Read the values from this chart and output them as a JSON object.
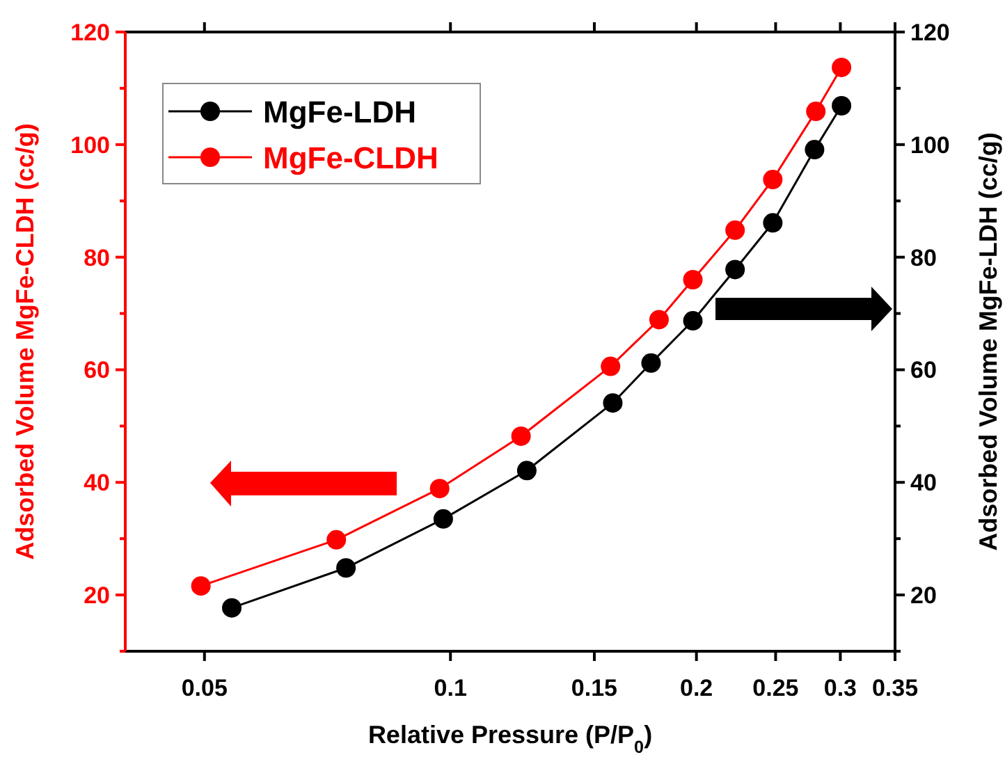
{
  "chart_data": {
    "type": "line",
    "xlabel": "Relative Pressure (P/P$_{0}$)",
    "ylabel": "Adsorbed Volume MgFe-CLDH (cc/g)",
    "y2label": "Adsorbed Volume MgFe-LDH (cc/g)",
    "log": "x",
    "xlim": [
      0.04,
      0.35
    ],
    "xticks": [
      0.05,
      0.1,
      0.15,
      0.2,
      0.25,
      0.3,
      0.35
    ],
    "ylim": [
      10,
      120
    ],
    "yticks": [
      {
        "value": 10,
        "label": null
      },
      20,
      {
        "value": 30,
        "label": null
      },
      40,
      {
        "value": 50,
        "label": null
      },
      60,
      {
        "value": 70,
        "label": null
      },
      80,
      {
        "value": 90,
        "label": null
      },
      100,
      {
        "value": 110,
        "label": null
      },
      120
    ],
    "y2lim": [
      10,
      120
    ],
    "y2ticks": [
      {
        "value": 10,
        "label": null
      },
      20,
      {
        "value": 30,
        "label": null
      },
      40,
      {
        "value": 50,
        "label": null
      },
      60,
      {
        "value": 70,
        "label": null
      },
      80,
      {
        "value": 90,
        "label": null
      },
      100,
      {
        "value": 110,
        "label": null
      },
      120
    ],
    "marker": "circle",
    "line_style": "solid",
    "legend": "top left",
    "grid": false,
    "series": [
      {
        "name": "MgFe-LDH",
        "color": "#000000",
        "axis": "y2",
        "x": [
          0.054,
          0.0745,
          0.098,
          0.124,
          0.158,
          0.176,
          0.198,
          0.223,
          0.248,
          0.279,
          0.301
        ],
        "values": [
          17.7,
          24.8,
          33.5,
          42.1,
          54.1,
          61.2,
          68.7,
          77.8,
          86.1,
          99.1,
          106.9
        ]
      },
      {
        "name": "MgFe-CLDH",
        "color": "#ff0000",
        "axis": "y",
        "x": [
          0.0495,
          0.0725,
          0.097,
          0.122,
          0.157,
          0.18,
          0.198,
          0.223,
          0.248,
          0.28,
          0.301
        ],
        "values": [
          21.6,
          29.8,
          38.9,
          48.2,
          60.6,
          68.9,
          76,
          84.8,
          93.8,
          105.9,
          113.7
        ]
      }
    ]
  }
}
